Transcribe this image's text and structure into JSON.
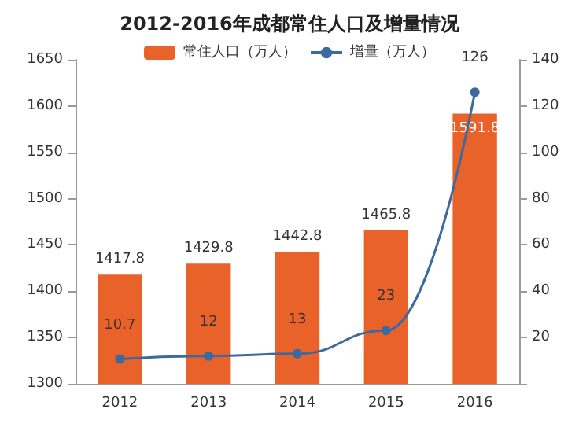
{
  "chart_data": {
    "type": "bar",
    "title": "2012-2016年成都常住人口及增量情况",
    "categories": [
      "2012",
      "2013",
      "2014",
      "2015",
      "2016"
    ],
    "series": [
      {
        "name": "常住人口（万人）",
        "color": "#e8622a",
        "values": [
          1417.8,
          1429.8,
          1442.8,
          1465.8,
          1591.8
        ]
      },
      {
        "name": "增量（万人）",
        "type": "line",
        "axis": "y2",
        "color": "#3d6a9e",
        "values": [
          10.7,
          12,
          13,
          23,
          126
        ]
      }
    ],
    "ylim": [
      1300,
      1650
    ],
    "yticks": [
      1300,
      1350,
      1400,
      1450,
      1500,
      1550,
      1600,
      1650
    ],
    "y2lim": [
      0,
      140
    ],
    "y2ticks": [
      {
        "value": 0,
        "label": null
      },
      20,
      40,
      60,
      80,
      100,
      120,
      140
    ],
    "data_labels": true,
    "legend": "top",
    "grid": false,
    "marker": "circle"
  }
}
